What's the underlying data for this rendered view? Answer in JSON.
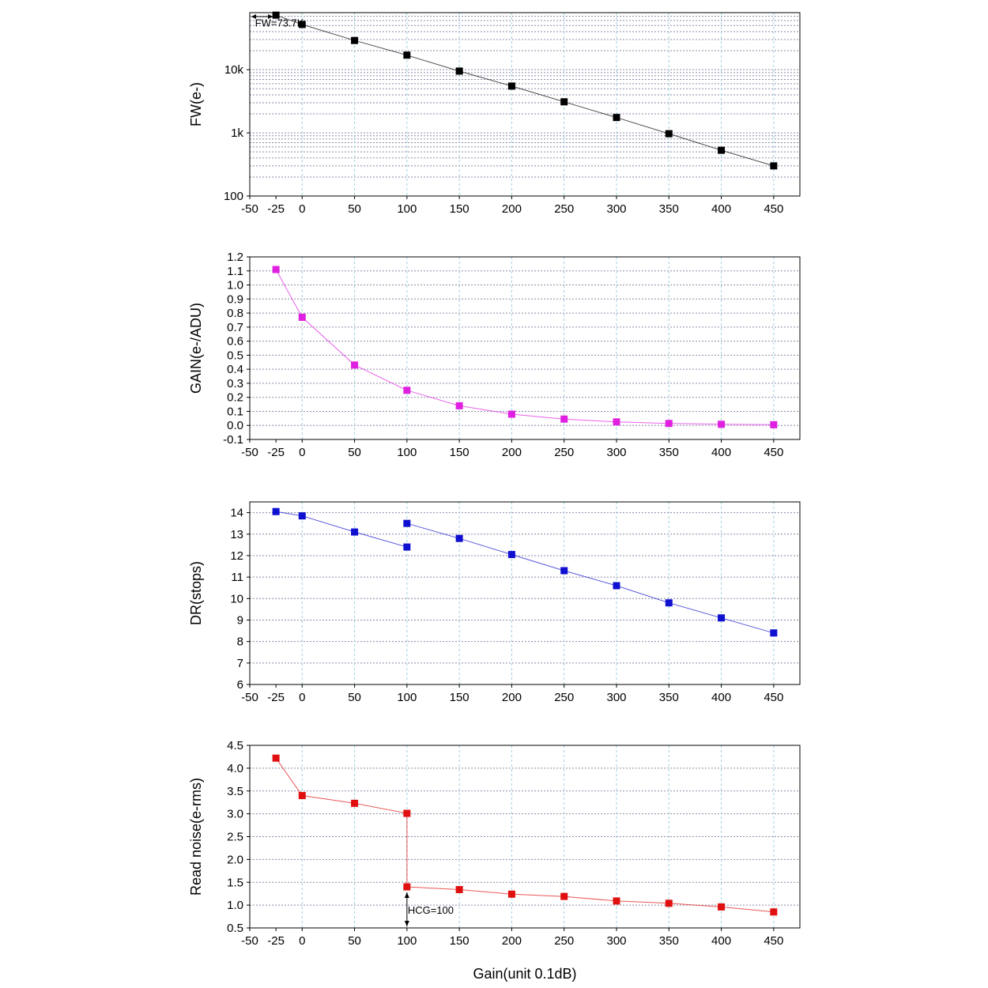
{
  "chart_data": [
    {
      "type": "line",
      "scale": "log",
      "ylabel": "FW(e-)",
      "xlabel": "",
      "xlim": [
        -50,
        475
      ],
      "ylim": [
        100,
        80000
      ],
      "x_ticks": [
        -50,
        -25,
        0,
        50,
        100,
        150,
        200,
        250,
        300,
        350,
        400,
        450
      ],
      "y_ticks": [
        {
          "value": 100,
          "label": "100"
        },
        {
          "value": 1000,
          "label": "1k"
        },
        {
          "value": 10000,
          "label": "10k"
        }
      ],
      "color": "#000000",
      "series": [
        {
          "segments": [
            [
              [
                -25,
                73000
              ],
              [
                0,
                52000
              ],
              [
                50,
                29000
              ],
              [
                100,
                17000
              ],
              [
                150,
                9500
              ],
              [
                200,
                5500
              ],
              [
                250,
                3100
              ],
              [
                300,
                1750
              ],
              [
                350,
                970
              ],
              [
                400,
                530
              ],
              [
                450,
                300
              ]
            ]
          ]
        }
      ],
      "annotations": [
        {
          "text": "FW=73.7K",
          "x": -48,
          "y": 56000
        }
      ]
    },
    {
      "type": "line",
      "scale": "linear",
      "ylabel": "GAIN(e-/ADU)",
      "xlabel": "",
      "xlim": [
        -50,
        475
      ],
      "ylim": [
        -0.1,
        1.2
      ],
      "x_ticks": [
        -50,
        -25,
        0,
        50,
        100,
        150,
        200,
        250,
        300,
        350,
        400,
        450
      ],
      "y_ticks": [
        {
          "value": -0.1,
          "label": "-0.1"
        },
        {
          "value": 0.0,
          "label": "0.0"
        },
        {
          "value": 0.1,
          "label": "0.1"
        },
        {
          "value": 0.2,
          "label": "0.2"
        },
        {
          "value": 0.3,
          "label": "0.3"
        },
        {
          "value": 0.4,
          "label": "0.4"
        },
        {
          "value": 0.5,
          "label": "0.5"
        },
        {
          "value": 0.6,
          "label": "0.6"
        },
        {
          "value": 0.7,
          "label": "0.7"
        },
        {
          "value": 0.8,
          "label": "0.8"
        },
        {
          "value": 0.9,
          "label": "0.9"
        },
        {
          "value": 1.0,
          "label": "1.0"
        },
        {
          "value": 1.1,
          "label": "1.1"
        },
        {
          "value": 1.2,
          "label": "1.2"
        }
      ],
      "color": "#e020e0",
      "series": [
        {
          "segments": [
            [
              [
                -25,
                1.11
              ],
              [
                0,
                0.77
              ],
              [
                50,
                0.43
              ],
              [
                100,
                0.25
              ],
              [
                150,
                0.14
              ],
              [
                200,
                0.08
              ],
              [
                250,
                0.045
              ],
              [
                300,
                0.025
              ],
              [
                350,
                0.014
              ],
              [
                400,
                0.008
              ],
              [
                450,
                0.005
              ]
            ]
          ]
        }
      ],
      "annotations": []
    },
    {
      "type": "line",
      "scale": "linear",
      "ylabel": "DR(stops)",
      "xlabel": "",
      "xlim": [
        -50,
        475
      ],
      "ylim": [
        6,
        14.5
      ],
      "x_ticks": [
        -50,
        -25,
        0,
        50,
        100,
        150,
        200,
        250,
        300,
        350,
        400,
        450
      ],
      "y_ticks": [
        {
          "value": 6,
          "label": "6"
        },
        {
          "value": 7,
          "label": "7"
        },
        {
          "value": 8,
          "label": "8"
        },
        {
          "value": 9,
          "label": "9"
        },
        {
          "value": 10,
          "label": "10"
        },
        {
          "value": 11,
          "label": "11"
        },
        {
          "value": 12,
          "label": "12"
        },
        {
          "value": 13,
          "label": "13"
        },
        {
          "value": 14,
          "label": "14"
        }
      ],
      "color": "#1010d0",
      "series": [
        {
          "segments": [
            [
              [
                -25,
                14.05
              ],
              [
                0,
                13.85
              ],
              [
                50,
                13.1
              ],
              [
                100,
                12.4
              ]
            ],
            [
              [
                100,
                13.5
              ],
              [
                150,
                12.8
              ],
              [
                200,
                12.05
              ],
              [
                250,
                11.3
              ],
              [
                300,
                10.6
              ],
              [
                350,
                9.8
              ],
              [
                400,
                9.1
              ],
              [
                450,
                8.4
              ]
            ]
          ]
        }
      ],
      "annotations": []
    },
    {
      "type": "line",
      "scale": "linear",
      "ylabel": "Read noise(e-rms)",
      "xlabel": "Gain(unit 0.1dB)",
      "xlim": [
        -50,
        475
      ],
      "ylim": [
        0.5,
        4.5
      ],
      "x_ticks": [
        -50,
        -25,
        0,
        50,
        100,
        150,
        200,
        250,
        300,
        350,
        400,
        450
      ],
      "y_ticks": [
        {
          "value": 0.5,
          "label": "0.5"
        },
        {
          "value": 1.0,
          "label": "1.0"
        },
        {
          "value": 1.5,
          "label": "1.5"
        },
        {
          "value": 2.0,
          "label": "2.0"
        },
        {
          "value": 2.5,
          "label": "2.5"
        },
        {
          "value": 3.0,
          "label": "3.0"
        },
        {
          "value": 3.5,
          "label": "3.5"
        },
        {
          "value": 4.0,
          "label": "4.0"
        },
        {
          "value": 4.5,
          "label": "4.5"
        }
      ],
      "color": "#e01010",
      "series": [
        {
          "segments": [
            [
              [
                -25,
                4.22
              ],
              [
                0,
                3.4
              ],
              [
                50,
                3.23
              ],
              [
                100,
                3.01
              ],
              [
                100,
                1.4
              ],
              [
                150,
                1.34
              ],
              [
                200,
                1.24
              ],
              [
                250,
                1.19
              ],
              [
                300,
                1.09
              ],
              [
                350,
                1.04
              ],
              [
                400,
                0.96
              ],
              [
                450,
                0.85
              ]
            ]
          ]
        }
      ],
      "annotations": [
        {
          "text": "HCG=100",
          "x": 100,
          "y": 0.9
        }
      ]
    }
  ]
}
